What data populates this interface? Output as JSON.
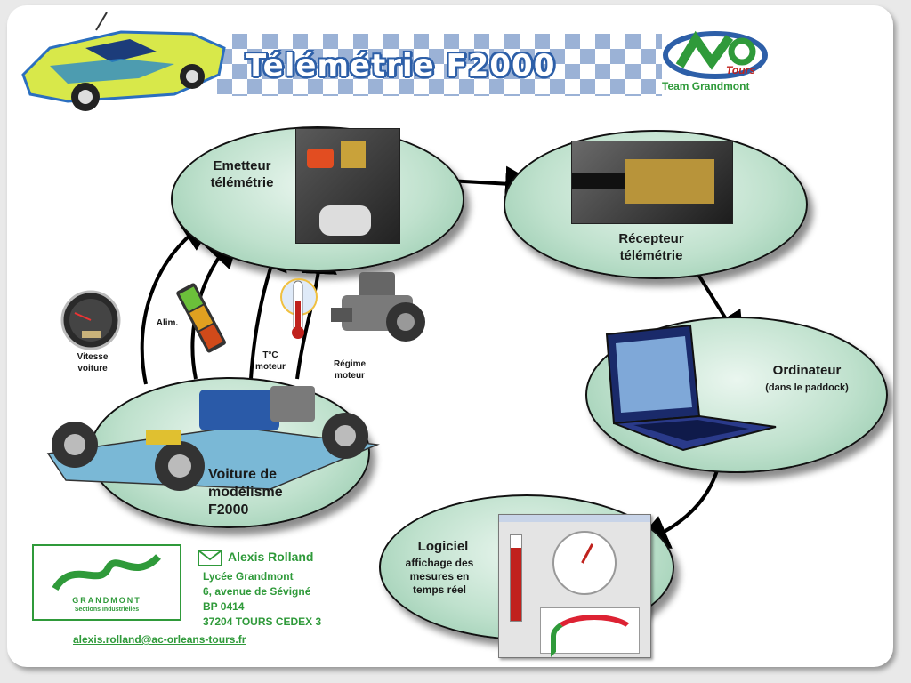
{
  "header": {
    "title": "Télémétrie F2000",
    "team": "Team Grandmont",
    "team_sub": "Tours"
  },
  "nodes": {
    "emitter": "Emetteur\ntélémétrie",
    "receiver": "Récepteur\ntélémétrie",
    "computer": "Ordinateur",
    "computer_sub": "(dans le paddock)",
    "software_title": "Logiciel",
    "software_desc": "affichage des\nmesures en\ntemps réel",
    "car": "Voiture de\nmodélisme\nF2000"
  },
  "sensors": {
    "speed": "Vitesse\nvoiture",
    "power": "Alim.",
    "temp": "T°C\nmoteur",
    "rpm": "Régime\nmoteur"
  },
  "footer": {
    "logo_name": "GRANDMONT",
    "logo_sub": "Sections Industrielles",
    "contact_name": "Alexis Rolland",
    "address": [
      "Lycée Grandmont",
      "6, avenue de Sévigné",
      "BP 0414",
      "37204 TOURS CEDEX 3"
    ],
    "email": "alexis.rolland@ac-orleans-tours.fr"
  },
  "colors": {
    "ellipse": "#bfe1cd",
    "accent_blue": "#2d5fa8",
    "accent_green": "#2f9a3a"
  }
}
